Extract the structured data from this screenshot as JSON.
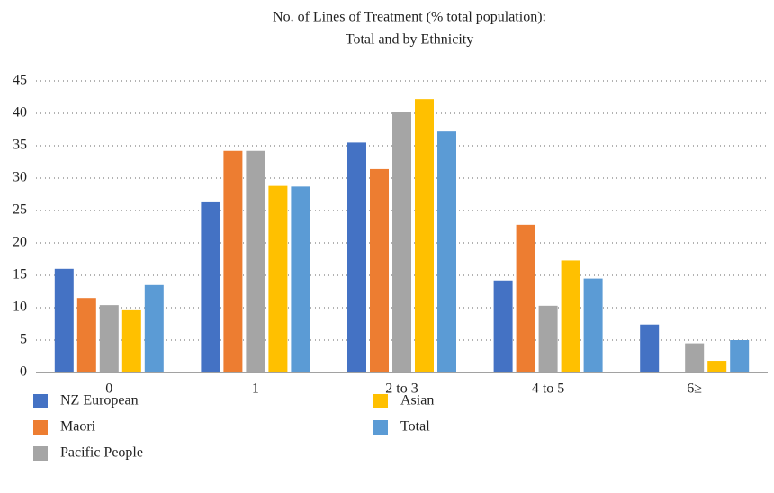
{
  "chart_data": {
    "type": "bar",
    "title": [
      "No. of Lines of Treatment (% total population):",
      "Total and by Ethnicity"
    ],
    "categories": [
      "0",
      "1",
      "2 to 3",
      "4 to 5",
      "6≥"
    ],
    "series": [
      {
        "name": "NZ European",
        "color": "#4472c4",
        "values": [
          16.0,
          26.4,
          35.5,
          14.2,
          7.4
        ]
      },
      {
        "name": "Maori",
        "color": "#ed7d31",
        "values": [
          11.5,
          34.2,
          31.4,
          22.8,
          null
        ]
      },
      {
        "name": "Pacific People",
        "color": "#a5a5a5",
        "values": [
          10.4,
          34.2,
          40.2,
          10.3,
          4.5
        ]
      },
      {
        "name": "Asian",
        "color": "#ffc000",
        "values": [
          9.6,
          28.8,
          42.2,
          17.3,
          1.8
        ]
      },
      {
        "name": "Total",
        "color": "#5b9bd5",
        "values": [
          13.5,
          28.7,
          37.2,
          14.5,
          5.0
        ]
      }
    ],
    "ylim": [
      0,
      45
    ],
    "yticks": [
      0,
      5,
      10,
      15,
      20,
      25,
      30,
      35,
      40,
      45
    ],
    "grid": true
  }
}
